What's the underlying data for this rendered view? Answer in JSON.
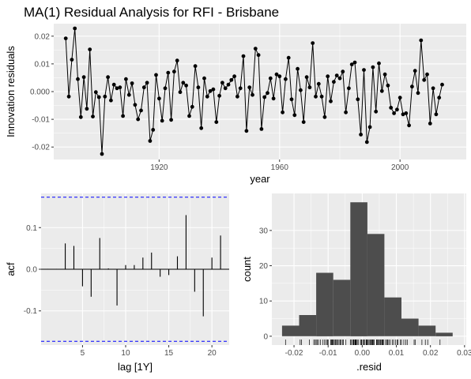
{
  "chart_data": [
    {
      "type": "line",
      "title": "MA(1) Residual Analysis for RFI - Brisbane",
      "xlabel": "year",
      "ylabel": "Innovation residuals",
      "xlim": [
        1885,
        2022
      ],
      "ylim": [
        -0.0245,
        0.0245
      ],
      "x_ticks": [
        1920,
        1960,
        2000
      ],
      "x_tick_labels": [
        "1920",
        "1960",
        "2000"
      ],
      "y_ticks": [
        -0.02,
        -0.01,
        0.0,
        0.01,
        0.02
      ],
      "y_tick_labels": [
        "-0.02",
        "-0.01",
        "0.000",
        "0.01",
        "0.02"
      ],
      "x_start": 1889,
      "values": [
        0.0192,
        -0.0018,
        0.0115,
        0.0228,
        0.0045,
        -0.0092,
        0.0052,
        -0.0062,
        0.0152,
        -0.009,
        -0.0002,
        -0.002,
        -0.0225,
        -0.0018,
        0.0052,
        -0.0032,
        0.0025,
        0.0012,
        0.0015,
        -0.0088,
        0.0045,
        -0.0012,
        0.003,
        -0.0048,
        -0.01,
        -0.0068,
        0.0015,
        0.0032,
        -0.0178,
        -0.0138,
        0.006,
        -0.0025,
        -0.0105,
        0.0012,
        0.0068,
        -0.0102,
        0.0072,
        0.0112,
        -0.0002,
        0.0032,
        0.0022,
        -0.0088,
        -0.0055,
        0.0092,
        0.0015,
        -0.0132,
        0.0048,
        -0.0018,
        0.0002,
        0.0008,
        -0.011,
        -0.0015,
        0.0032,
        0.0012,
        0.0025,
        0.0042,
        0.0055,
        -0.0018,
        0.0012,
        0.0128,
        -0.0142,
        0.0015,
        -0.0012,
        0.0155,
        0.0132,
        -0.0135,
        -0.002,
        -0.0005,
        0.0048,
        -0.0025,
        0.0062,
        0.0055,
        -0.0075,
        0.0045,
        0.0122,
        -0.0028,
        -0.0085,
        0.0082,
        0.0005,
        -0.011,
        0.0052,
        0.0015,
        0.0175,
        -0.0018,
        0.0028,
        -0.0018,
        -0.0092,
        0.0055,
        -0.0035,
        0.0035,
        0.0058,
        0.0048,
        0.0072,
        -0.0075,
        0.0012,
        0.0098,
        0.0105,
        -0.0028,
        -0.0155,
        0.0078,
        -0.0182,
        -0.0128,
        0.0088,
        -0.0072,
        0.0102,
        0.0002,
        0.0062,
        0.0022,
        -0.0058,
        -0.0078,
        -0.0065,
        -0.0022,
        -0.0082,
        -0.0078,
        -0.0122,
        0.0018,
        0.0075,
        -0.0005,
        0.0185,
        0.0042,
        0.0062,
        -0.0115,
        0.0012,
        -0.0082,
        -0.0022,
        0.0025
      ]
    },
    {
      "type": "bar",
      "xlabel": "lag [1Y]",
      "ylabel": "acf",
      "xlim": [
        0.2,
        22.0
      ],
      "ylim": [
        -0.182,
        0.182
      ],
      "x_ticks": [
        5,
        10,
        15,
        20
      ],
      "x_tick_labels": [
        "5",
        "10",
        "15",
        "20"
      ],
      "y_ticks": [
        -0.1,
        0.0,
        0.1
      ],
      "y_tick_labels": [
        "-0.1",
        "0.0",
        "0.1"
      ],
      "ci_bound": 0.173,
      "ci_color": "#0000ff",
      "lags": [
        1,
        2,
        3,
        4,
        5,
        6,
        7,
        8,
        9,
        10,
        11,
        12,
        13,
        14,
        15,
        16,
        17,
        18,
        19,
        20,
        21
      ],
      "values": [
        0.001,
        0.001,
        0.062,
        0.056,
        -0.041,
        -0.066,
        0.075,
        0.002,
        -0.087,
        0.01,
        0.01,
        0.028,
        0.04,
        -0.018,
        -0.014,
        0.031,
        0.13,
        -0.054,
        -0.113,
        0.028,
        0.081
      ]
    },
    {
      "type": "histogram",
      "xlabel": ".resid",
      "ylabel": "count",
      "xlim": [
        -0.0265,
        0.0305
      ],
      "ylim": [
        -2.5,
        40.5
      ],
      "x_ticks": [
        -0.02,
        -0.01,
        0.0,
        0.01,
        0.02,
        0.03
      ],
      "x_tick_labels": [
        "-0.02",
        "-0.01",
        "0.00",
        "0.01",
        "0.02",
        "0.03"
      ],
      "y_ticks": [
        0,
        10,
        20,
        30
      ],
      "y_tick_labels": [
        "0",
        "10",
        "20",
        "30"
      ],
      "bin_edges": [
        -0.0235,
        -0.0185,
        -0.0135,
        -0.0085,
        -0.0035,
        0.0015,
        0.0065,
        0.0115,
        0.0165,
        0.0215,
        0.0265
      ],
      "counts": [
        3,
        6,
        18,
        16,
        38,
        29,
        11,
        5,
        3,
        1
      ]
    }
  ]
}
